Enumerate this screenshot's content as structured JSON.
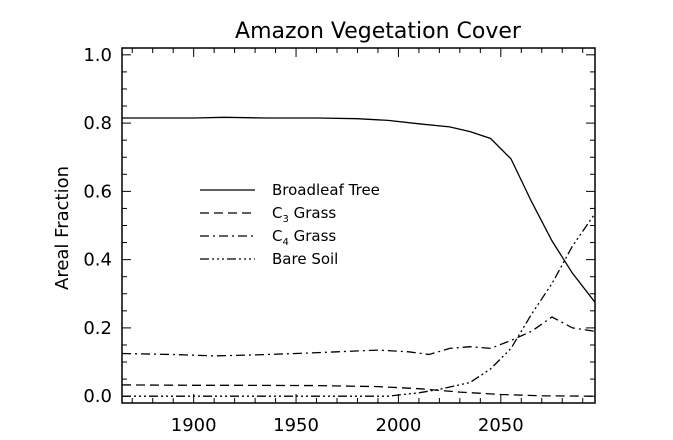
{
  "chart_data": {
    "type": "line",
    "title": "Amazon Vegetation Cover",
    "xlabel": "",
    "ylabel": "Areal Fraction",
    "xlim": [
      1865,
      2096
    ],
    "ylim": [
      -0.02,
      1.02
    ],
    "xticks": [
      1900,
      1950,
      2000,
      2050
    ],
    "yticks": [
      0.0,
      0.2,
      0.4,
      0.6,
      0.8,
      1.0
    ],
    "ytick_labels": [
      "0.0",
      "0.2",
      "0.4",
      "0.6",
      "0.8",
      "1.0"
    ],
    "grid": false,
    "legend_position": "center-left",
    "series": [
      {
        "name": "Broadleaf Tree",
        "name_parts": [
          "Broadleaf Tree"
        ],
        "dash": "solid",
        "x": [
          1865,
          1880,
          1900,
          1915,
          1935,
          1960,
          1980,
          1995,
          2010,
          2025,
          2035,
          2045,
          2055,
          2065,
          2075,
          2085,
          2096
        ],
        "y": [
          0.815,
          0.815,
          0.815,
          0.817,
          0.815,
          0.815,
          0.813,
          0.808,
          0.798,
          0.789,
          0.775,
          0.755,
          0.695,
          0.57,
          0.455,
          0.36,
          0.275
        ]
      },
      {
        "name": "C3 Grass",
        "name_parts": [
          "C",
          "3",
          " Grass"
        ],
        "dash": "dashed",
        "x": [
          1865,
          1900,
          1920,
          1960,
          1990,
          2010,
          2030,
          2050,
          2070,
          2096
        ],
        "y": [
          0.033,
          0.032,
          0.032,
          0.031,
          0.028,
          0.022,
          0.012,
          0.005,
          0.001,
          0.0
        ]
      },
      {
        "name": "C4 Grass",
        "name_parts": [
          "C",
          "4",
          " Grass"
        ],
        "dash": "dashdot",
        "x": [
          1865,
          1890,
          1910,
          1930,
          1950,
          1970,
          1990,
          2005,
          2015,
          2025,
          2035,
          2045,
          2055,
          2065,
          2075,
          2085,
          2096
        ],
        "y": [
          0.125,
          0.122,
          0.118,
          0.121,
          0.125,
          0.13,
          0.135,
          0.13,
          0.122,
          0.14,
          0.145,
          0.14,
          0.163,
          0.19,
          0.232,
          0.2,
          0.19
        ]
      },
      {
        "name": "Bare Soil",
        "name_parts": [
          "Bare Soil"
        ],
        "dash": "dashdotdotdot",
        "x": [
          1865,
          1950,
          1995,
          2010,
          2020,
          2035,
          2045,
          2055,
          2065,
          2075,
          2085,
          2096
        ],
        "y": [
          0.0,
          0.0,
          0.0,
          0.01,
          0.02,
          0.04,
          0.08,
          0.14,
          0.24,
          0.33,
          0.44,
          0.535
        ]
      }
    ]
  }
}
